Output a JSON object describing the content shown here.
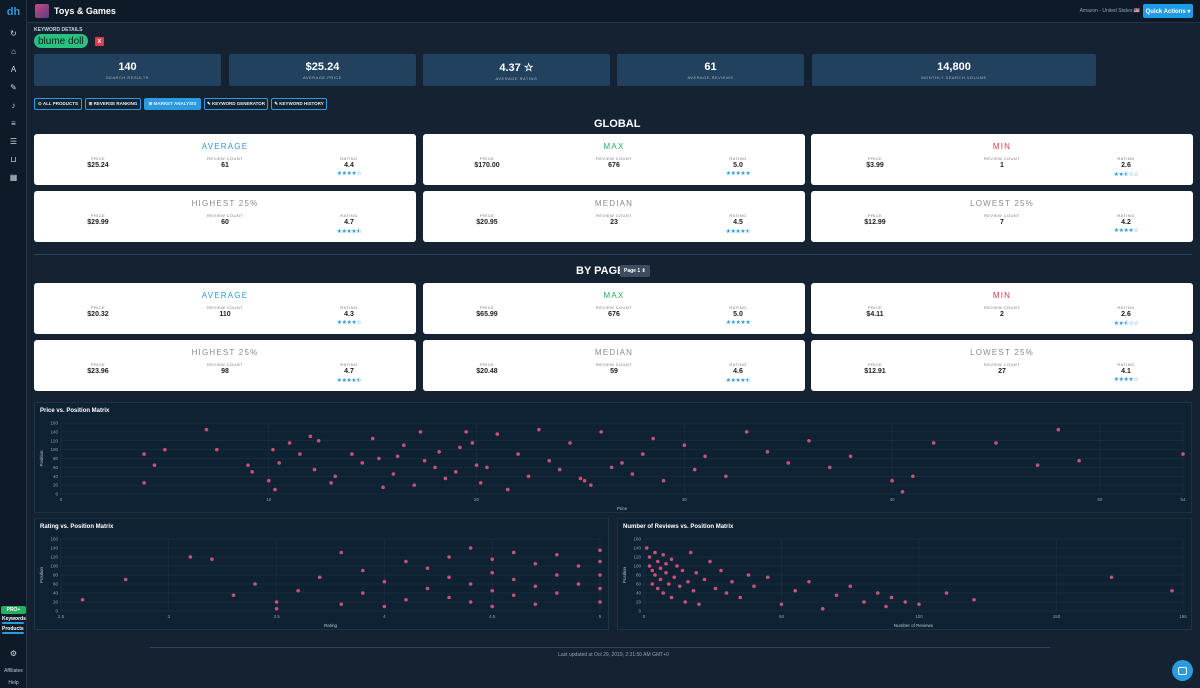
{
  "header": {
    "logo": "dh",
    "category_title": "Toys & Games",
    "marketplace": "Amazon - United States 🇺🇸",
    "quick_actions": "Quick Actions ▾"
  },
  "sidebar": {
    "icons": [
      {
        "name": "refresh-icon",
        "glyph": "↻"
      },
      {
        "name": "home-icon",
        "glyph": "⌂"
      },
      {
        "name": "font-icon",
        "glyph": "A"
      },
      {
        "name": "tag-icon",
        "glyph": "✎"
      },
      {
        "name": "bell-icon",
        "glyph": "♪"
      },
      {
        "name": "database-icon",
        "glyph": "≡"
      },
      {
        "name": "list-icon",
        "glyph": "☰"
      },
      {
        "name": "cart-icon",
        "glyph": "⊔"
      },
      {
        "name": "calendar-icon",
        "glyph": "▦"
      }
    ],
    "pro_badge": "PRO+",
    "keywords_label": "Keywords",
    "products_label": "Products",
    "affiliates": "Affiliates",
    "help": "Help"
  },
  "keyword": {
    "section_label": "KEYWORD DETAILS",
    "value": "blume doll",
    "remove": "x"
  },
  "stats": [
    {
      "value": "140",
      "label": "SEARCH RESULTS"
    },
    {
      "value": "$25.24",
      "label": "AVERAGE PRICE"
    },
    {
      "value": "4.37 ☆",
      "label": "AVERAGE RATING"
    },
    {
      "value": "61",
      "label": "AVERAGE REVIEWS"
    },
    {
      "value": "14,800",
      "label": "MONTHLY SEARCH VOLUME"
    }
  ],
  "tabs": [
    {
      "label": "⊙ ALL PRODUCTS",
      "active": false
    },
    {
      "label": "⊞ REVERSE RANKING",
      "active": false
    },
    {
      "label": "⊞ MARKET ANALYSIS",
      "active": true
    },
    {
      "label": "✎ KEYWORD GENERATOR",
      "active": false
    },
    {
      "label": "✎ KEYWORD HISTORY",
      "active": false
    }
  ],
  "global_title": "GLOBAL",
  "bypage_title": "BY PAGE",
  "page_select": "Page 1 ⇕",
  "col_labels": {
    "price": "PRICE",
    "reviews": "REVIEW COUNT",
    "rating": "RATING"
  },
  "global_cards": [
    {
      "title": "AVERAGE",
      "tone": "blue",
      "price": "$25.24",
      "reviews": "61",
      "rating": "4.4",
      "stars": "★★★★☆"
    },
    {
      "title": "MAX",
      "tone": "green",
      "price": "$170.00",
      "reviews": "676",
      "rating": "5.0",
      "stars": "★★★★★"
    },
    {
      "title": "MIN",
      "tone": "red",
      "price": "$3.99",
      "reviews": "1",
      "rating": "2.6",
      "stars": "★★⯪☆☆"
    },
    {
      "title": "HIGHEST 25%",
      "tone": "gray",
      "price": "$29.99",
      "reviews": "60",
      "rating": "4.7",
      "stars": "★★★★⯪"
    },
    {
      "title": "MEDIAN",
      "tone": "gray",
      "price": "$20.95",
      "reviews": "23",
      "rating": "4.5",
      "stars": "★★★★⯪"
    },
    {
      "title": "LOWEST 25%",
      "tone": "gray",
      "price": "$12.99",
      "reviews": "7",
      "rating": "4.2",
      "stars": "★★★★☆"
    }
  ],
  "page_cards": [
    {
      "title": "AVERAGE",
      "tone": "blue",
      "price": "$20.32",
      "reviews": "110",
      "rating": "4.3",
      "stars": "★★★★☆"
    },
    {
      "title": "MAX",
      "tone": "green",
      "price": "$65.99",
      "reviews": "676",
      "rating": "5.0",
      "stars": "★★★★★"
    },
    {
      "title": "MIN",
      "tone": "red",
      "price": "$4.11",
      "reviews": "2",
      "rating": "2.6",
      "stars": "★★⯪☆☆"
    },
    {
      "title": "HIGHEST 25%",
      "tone": "gray",
      "price": "$23.96",
      "reviews": "98",
      "rating": "4.7",
      "stars": "★★★★⯪"
    },
    {
      "title": "MEDIAN",
      "tone": "gray",
      "price": "$20.48",
      "reviews": "59",
      "rating": "4.6",
      "stars": "★★★★⯪"
    },
    {
      "title": "LOWEST 25%",
      "tone": "gray",
      "price": "$12.91",
      "reviews": "27",
      "rating": "4.1",
      "stars": "★★★★☆"
    }
  ],
  "colors": {
    "dot": "#e0567a",
    "accent": "#2b9be0",
    "grid": "#1d3448"
  },
  "chart_data": [
    {
      "type": "scatter",
      "title": "Price vs. Position Matrix",
      "xlabel": "Price",
      "ylabel": "Position",
      "xlim": [
        0,
        54
      ],
      "ylim": [
        0,
        160
      ],
      "xticks": [
        "0",
        "10",
        "20",
        "30",
        "40",
        "50",
        "54"
      ],
      "xtick_values": [
        0,
        10,
        20,
        30,
        40,
        50,
        54
      ],
      "yticks": [
        0,
        20,
        40,
        60,
        80,
        100,
        120,
        140,
        160
      ],
      "x": [
        4,
        4.5,
        5,
        4,
        7,
        7.5,
        9,
        9.2,
        10,
        10.3,
        10.2,
        10.5,
        11,
        11.5,
        12,
        12.2,
        12.4,
        13,
        13.2,
        14,
        14.5,
        15,
        15.3,
        15.5,
        16,
        16.2,
        16.5,
        17,
        17.3,
        17.5,
        18,
        18.2,
        18.5,
        19,
        19.2,
        19.5,
        19.8,
        20,
        20.2,
        20.5,
        21,
        21.5,
        22,
        22.5,
        23,
        23.5,
        24,
        24.5,
        25,
        25.2,
        25.5,
        26,
        26.5,
        27,
        27.5,
        28,
        28.5,
        29,
        30,
        30.5,
        31,
        32,
        33,
        34,
        35,
        36,
        37,
        38,
        40,
        40.5,
        41,
        42,
        45,
        47,
        48,
        49,
        54
      ],
      "y": [
        90,
        65,
        100,
        25,
        145,
        100,
        65,
        50,
        30,
        10,
        100,
        70,
        115,
        90,
        130,
        55,
        120,
        25,
        40,
        90,
        70,
        125,
        80,
        15,
        45,
        85,
        110,
        20,
        140,
        75,
        60,
        95,
        35,
        50,
        105,
        140,
        115,
        65,
        25,
        60,
        135,
        10,
        90,
        40,
        145,
        75,
        55,
        115,
        35,
        30,
        20,
        140,
        60,
        70,
        45,
        90,
        125,
        30,
        110,
        55,
        85,
        40,
        140,
        95,
        70,
        120,
        60,
        85,
        30,
        5,
        40,
        115,
        115,
        65,
        145,
        75,
        90
      ]
    },
    {
      "type": "scatter",
      "title": "Rating vs. Position Matrix",
      "xlabel": "Rating",
      "ylabel": "Position",
      "xlim": [
        2.5,
        5
      ],
      "ylim": [
        0,
        160
      ],
      "xticks": [
        "2.5",
        "3",
        "3.5",
        "4",
        "4.5",
        "5"
      ],
      "xtick_values": [
        2.5,
        3,
        3.5,
        4,
        4.5,
        5
      ],
      "yticks": [
        0,
        20,
        40,
        60,
        80,
        100,
        120,
        140,
        160
      ],
      "x": [
        2.6,
        2.8,
        3.1,
        3.2,
        3.3,
        3.4,
        3.5,
        3.5,
        3.6,
        3.7,
        3.8,
        3.8,
        3.9,
        3.9,
        4.0,
        4.0,
        4.1,
        4.1,
        4.2,
        4.2,
        4.3,
        4.3,
        4.3,
        4.4,
        4.4,
        4.4,
        4.5,
        4.5,
        4.5,
        4.5,
        4.6,
        4.6,
        4.6,
        4.7,
        4.7,
        4.7,
        4.8,
        4.8,
        4.8,
        4.9,
        4.9,
        5.0,
        5.0,
        5.0,
        5.0,
        5.0
      ],
      "y": [
        25,
        70,
        120,
        115,
        35,
        60,
        20,
        5,
        45,
        75,
        15,
        130,
        40,
        90,
        65,
        10,
        110,
        25,
        50,
        95,
        120,
        75,
        30,
        140,
        60,
        20,
        115,
        85,
        45,
        10,
        130,
        70,
        35,
        105,
        55,
        15,
        125,
        80,
        40,
        100,
        60,
        135,
        110,
        80,
        50,
        20
      ]
    },
    {
      "type": "scatter",
      "title": "Number of Reviews vs. Position Matrix",
      "xlabel": "Number of Reviews",
      "ylabel": "Position",
      "xlim": [
        0,
        196
      ],
      "ylim": [
        0,
        160
      ],
      "xticks": [
        "0",
        "50",
        "100",
        "150",
        "196"
      ],
      "xtick_values": [
        0,
        50,
        100,
        150,
        196
      ],
      "yticks": [
        0,
        20,
        40,
        60,
        80,
        100,
        120,
        140,
        160
      ],
      "x": [
        1,
        2,
        2,
        3,
        3,
        4,
        4,
        5,
        5,
        6,
        6,
        7,
        7,
        8,
        8,
        9,
        10,
        10,
        11,
        12,
        13,
        14,
        15,
        16,
        17,
        18,
        19,
        20,
        22,
        24,
        26,
        28,
        30,
        32,
        35,
        38,
        40,
        45,
        50,
        55,
        60,
        65,
        70,
        75,
        80,
        85,
        88,
        90,
        95,
        100,
        110,
        120,
        170,
        192
      ],
      "y": [
        140,
        120,
        100,
        90,
        60,
        130,
        80,
        110,
        50,
        95,
        70,
        125,
        40,
        105,
        85,
        60,
        115,
        30,
        75,
        100,
        55,
        90,
        20,
        65,
        130,
        45,
        85,
        15,
        70,
        110,
        50,
        90,
        40,
        65,
        30,
        80,
        55,
        75,
        15,
        45,
        65,
        5,
        35,
        55,
        20,
        40,
        10,
        30,
        20,
        15,
        40,
        25,
        75,
        45
      ]
    }
  ],
  "footer": {
    "updated": "Last updated at Oct 29, 2019, 2:31:50 AM GMT+0"
  }
}
